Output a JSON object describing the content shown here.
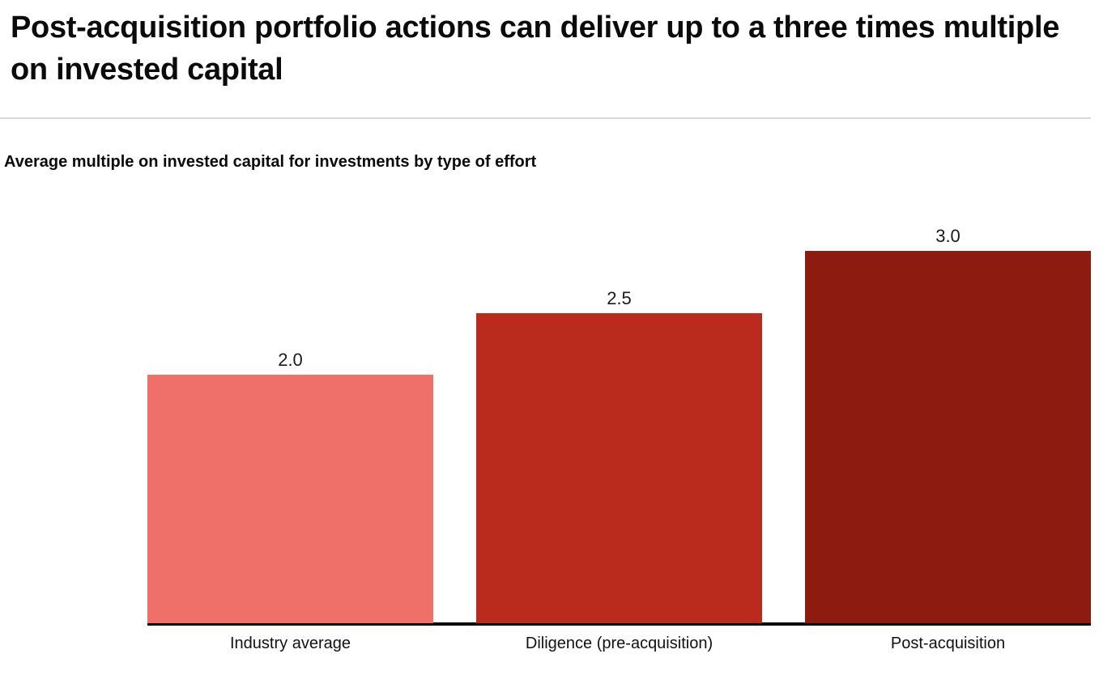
{
  "page": {
    "title": "Post-acquisition portfolio actions can deliver up to a three times multiple on invested capital"
  },
  "chart_data": {
    "type": "bar",
    "title": "Average multiple on invested capital for investments by type of effort",
    "categories": [
      "Industry average",
      "Diligence (pre-acquisition)",
      "Post-acquisition"
    ],
    "values": [
      2.0,
      2.5,
      3.0
    ],
    "value_labels": [
      "2.0",
      "2.5",
      "3.0"
    ],
    "series": [
      {
        "name": "Average multiple on invested capital",
        "values": [
          2.0,
          2.5,
          3.0
        ]
      }
    ],
    "bar_colors": [
      "#EE7068",
      "#BA2A1D",
      "#8E1B10"
    ],
    "xlabel": "",
    "ylabel": "",
    "ylim": [
      0,
      3.2
    ],
    "grid": false,
    "legend": "none",
    "axis_line_color": "#0a0a0a",
    "divider_color": "#d9d9d9"
  }
}
